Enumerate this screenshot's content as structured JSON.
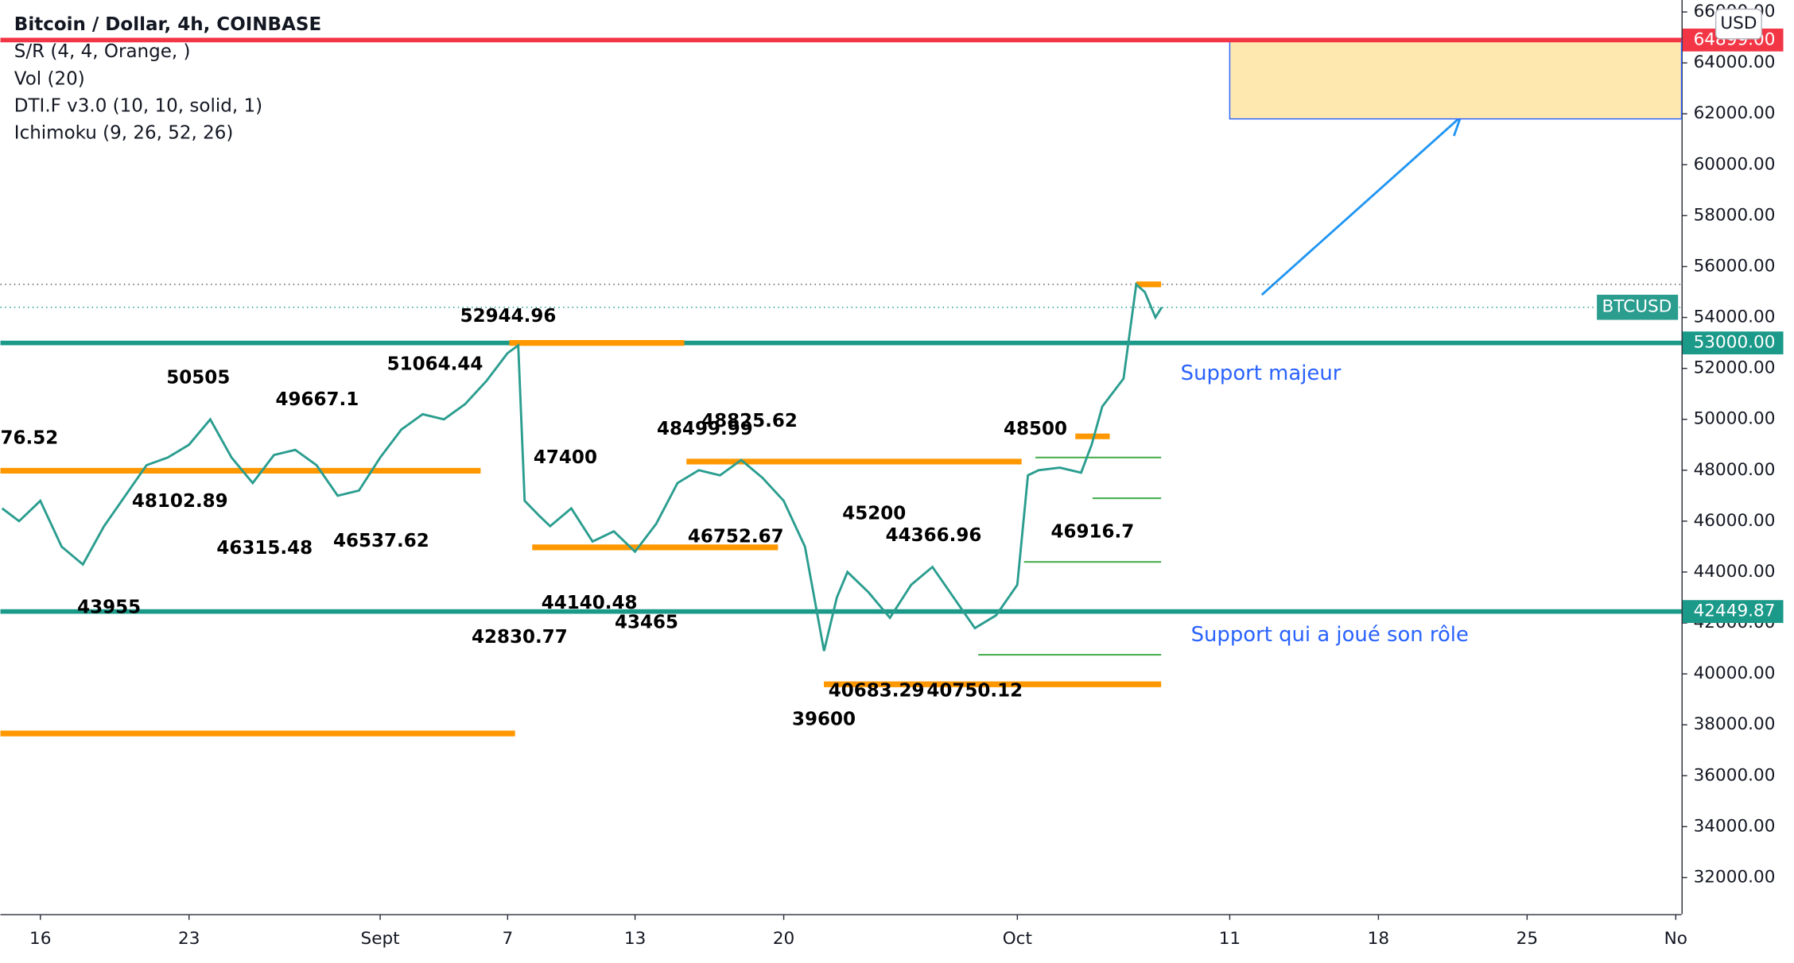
{
  "chart_data": {
    "type": "line",
    "header": [
      "Bitcoin / Dollar, 4h, COINBASE",
      "S/R (4, 4, Orange, )",
      "Vol (20)",
      "DTI.F v3.0 (10, 10, solid, 1)",
      "Ichimoku (9, 26, 52, 26)"
    ],
    "currency": "USD",
    "xlim": [
      14.12,
      93.27
    ],
    "xticks": [
      {
        "value": 16,
        "label": "16"
      },
      {
        "value": 23,
        "label": "23"
      },
      {
        "value": 32,
        "label": "Sept"
      },
      {
        "value": 38,
        "label": "7"
      },
      {
        "value": 44,
        "label": "13"
      },
      {
        "value": 51,
        "label": "20"
      },
      {
        "value": 62,
        "label": "Oct"
      },
      {
        "value": 72,
        "label": "11"
      },
      {
        "value": 79,
        "label": "18"
      },
      {
        "value": 86,
        "label": "25"
      },
      {
        "value": 93,
        "label": "No"
      }
    ],
    "ylim": [
      30564,
      66470
    ],
    "yticks": [
      {
        "value": 32000,
        "label": "32000.00"
      },
      {
        "value": 34000,
        "label": "34000.00"
      },
      {
        "value": 36000,
        "label": "36000.00"
      },
      {
        "value": 38000,
        "label": "38000.00"
      },
      {
        "value": 40000,
        "label": "40000.00"
      },
      {
        "value": 42000,
        "label": "42000.00"
      },
      {
        "value": 44000,
        "label": "44000.00"
      },
      {
        "value": 46000,
        "label": "46000.00"
      },
      {
        "value": 48000,
        "label": "48000.00"
      },
      {
        "value": 50000,
        "label": "50000.00"
      },
      {
        "value": 52000,
        "label": "52000.00"
      },
      {
        "value": 54000,
        "label": "54000.00"
      },
      {
        "value": 56000,
        "label": "56000.00"
      },
      {
        "value": 58000,
        "label": "58000.00"
      },
      {
        "value": 60000,
        "label": "60000.00"
      },
      {
        "value": 62000,
        "label": "62000.00"
      },
      {
        "value": 64000,
        "label": "64000.00"
      },
      {
        "value": 66000,
        "label": "66000.00"
      }
    ],
    "series": [
      {
        "name": "BTCUSD",
        "color": "#2a9d8f",
        "x": [
          14.2,
          15,
          16,
          17,
          18,
          19,
          20,
          21,
          22,
          23,
          24,
          25,
          26,
          27,
          28,
          29,
          30,
          31,
          32,
          33,
          34,
          35,
          36,
          37,
          38,
          38.5,
          38.8,
          39.5,
          40,
          41,
          42,
          43,
          44,
          45,
          46,
          47,
          48,
          49,
          50,
          51,
          52,
          52.9,
          53.5,
          54,
          55,
          56,
          57,
          58,
          59,
          60,
          61,
          62,
          62.5,
          63,
          64,
          65,
          65.5,
          66,
          67,
          67.6,
          68,
          68.5,
          68.8
        ],
        "values": [
          46500,
          46000,
          46800,
          45000,
          44300,
          45800,
          47000,
          48200,
          48500,
          49000,
          50000,
          48500,
          47500,
          48600,
          48800,
          48200,
          47000,
          47200,
          48500,
          49600,
          50200,
          50000,
          50600,
          51500,
          52600,
          52900,
          46800,
          46200,
          45800,
          46500,
          45200,
          45600,
          44800,
          45900,
          47500,
          48000,
          47800,
          48400,
          47700,
          46800,
          45000,
          40900,
          43000,
          44000,
          43200,
          42200,
          43500,
          44200,
          43000,
          41800,
          42300,
          43500,
          47800,
          48000,
          48100,
          47900,
          49000,
          50500,
          51600,
          55300,
          55000,
          54000,
          54400
        ]
      }
    ],
    "levels": [
      {
        "value": 64899,
        "label": "64899.00",
        "color": "#f23645"
      },
      {
        "value": 53000,
        "label": "53000.00",
        "color": "#1b9989"
      },
      {
        "value": 42449.87,
        "label": "42449.87",
        "color": "#1b9989"
      }
    ],
    "sr_color": "#ff9800",
    "sr_lines": [
      {
        "from": 38.08,
        "to": 46.32,
        "value": 53000
      },
      {
        "from": 14.12,
        "to": 36.73,
        "value": 47980
      },
      {
        "from": 46.42,
        "to": 62.2,
        "value": 48340
      },
      {
        "from": 39.16,
        "to": 50.73,
        "value": 44970
      },
      {
        "from": 52.89,
        "to": 68.77,
        "value": 39590
      },
      {
        "from": 14.12,
        "to": 38.35,
        "value": 37660
      },
      {
        "from": 64.73,
        "to": 66.35,
        "value": 49330
      },
      {
        "from": 67.59,
        "to": 68.77,
        "value": 55300
      }
    ],
    "target_color": "#4caf50",
    "target_lines": [
      {
        "from": 62.85,
        "to": 68.77,
        "value": 48500
      },
      {
        "from": 65.54,
        "to": 68.77,
        "value": 46900
      },
      {
        "from": 62.31,
        "to": 68.77,
        "value": 44400
      },
      {
        "from": 60.16,
        "to": 68.77,
        "value": 40750
      }
    ],
    "zone": {
      "from": 72.0,
      "to": 93.27,
      "top": 64899,
      "bottom": 61800,
      "color": "#ffe8b0"
    },
    "annotations": [
      "76.52",
      "50505",
      "49667.1",
      "51064.44",
      "52944.96",
      "48102.89",
      "46315.48",
      "46537.62",
      "43955",
      "47400",
      "48499.99",
      "48825.62",
      "46752.67",
      "44140.48",
      "43465",
      "42830.77",
      "45200",
      "44366.96",
      "48500",
      "46916.7",
      "39600",
      "40683.29",
      "40750.12"
    ],
    "notes": [
      "Support majeur",
      "Support qui a joué son rôle"
    ]
  }
}
